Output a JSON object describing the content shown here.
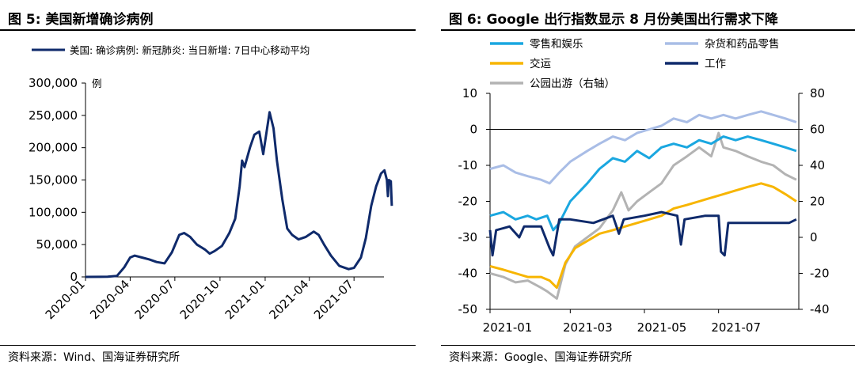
{
  "left": {
    "title": "图 5:  美国新增确诊病例",
    "source": "资料来源：Wind、国海证券研究所"
  },
  "right": {
    "title": "图 6:  Google 出行指数显示 8 月份美国出行需求下降",
    "source": "资料来源：Google、国海证券研究所"
  },
  "colors": {
    "navy": "#0f2a6b",
    "cyan": "#1aa7e0",
    "lightblue": "#a9bde6",
    "yellow": "#f7b500",
    "gray": "#b3b3b3"
  },
  "chart_data": [
    {
      "type": "line",
      "ylabel": "例",
      "ylim": [
        0,
        300000
      ],
      "y_ticks": [
        0,
        50000,
        100000,
        150000,
        200000,
        250000,
        300000
      ],
      "y_tick_labels": [
        "0",
        "50,000",
        "100,000",
        "150,000",
        "200,000",
        "250,000",
        "300,000"
      ],
      "xlim": [
        "2020-01-01",
        "2021-08-31"
      ],
      "x_tick_labels": [
        "2020-01",
        "2020-04",
        "2020-07",
        "2020-10",
        "2021-01",
        "2021-04",
        "2021-07"
      ],
      "x_tick_dates": [
        "2020-01-01",
        "2020-04-01",
        "2020-07-01",
        "2020-10-01",
        "2021-01-01",
        "2021-04-01",
        "2021-07-01"
      ],
      "legend_position": "top-left",
      "series": [
        {
          "name": "美国: 确诊病例: 新冠肺炎: 当日新增: 7日中心移动平均",
          "color": "#0f2a6b",
          "points": [
            [
              "2020-01-01",
              0
            ],
            [
              "2020-02-15",
              200
            ],
            [
              "2020-03-05",
              1500
            ],
            [
              "2020-03-20",
              15000
            ],
            [
              "2020-04-01",
              30000
            ],
            [
              "2020-04-10",
              33000
            ],
            [
              "2020-04-25",
              30000
            ],
            [
              "2020-05-10",
              27000
            ],
            [
              "2020-05-25",
              23000
            ],
            [
              "2020-06-10",
              21000
            ],
            [
              "2020-06-25",
              38000
            ],
            [
              "2020-07-10",
              65000
            ],
            [
              "2020-07-20",
              68000
            ],
            [
              "2020-08-01",
              62000
            ],
            [
              "2020-08-15",
              50000
            ],
            [
              "2020-09-01",
              42000
            ],
            [
              "2020-09-10",
              36000
            ],
            [
              "2020-09-20",
              40000
            ],
            [
              "2020-10-05",
              48000
            ],
            [
              "2020-10-20",
              68000
            ],
            [
              "2020-11-01",
              90000
            ],
            [
              "2020-11-10",
              140000
            ],
            [
              "2020-11-15",
              180000
            ],
            [
              "2020-11-20",
              170000
            ],
            [
              "2020-12-01",
              200000
            ],
            [
              "2020-12-10",
              220000
            ],
            [
              "2020-12-20",
              225000
            ],
            [
              "2020-12-28",
              190000
            ],
            [
              "2021-01-05",
              230000
            ],
            [
              "2021-01-10",
              255000
            ],
            [
              "2021-01-18",
              230000
            ],
            [
              "2021-01-25",
              180000
            ],
            [
              "2021-02-05",
              120000
            ],
            [
              "2021-02-15",
              75000
            ],
            [
              "2021-02-25",
              65000
            ],
            [
              "2021-03-10",
              58000
            ],
            [
              "2021-03-25",
              62000
            ],
            [
              "2021-04-10",
              70000
            ],
            [
              "2021-04-20",
              65000
            ],
            [
              "2021-05-01",
              50000
            ],
            [
              "2021-05-15",
              33000
            ],
            [
              "2021-06-01",
              17000
            ],
            [
              "2021-06-20",
              12000
            ],
            [
              "2021-07-01",
              14000
            ],
            [
              "2021-07-15",
              30000
            ],
            [
              "2021-07-25",
              60000
            ],
            [
              "2021-08-05",
              110000
            ],
            [
              "2021-08-15",
              140000
            ],
            [
              "2021-08-25",
              160000
            ],
            [
              "2021-09-01",
              165000
            ],
            [
              "2021-09-06",
              150000
            ],
            [
              "2021-09-08",
              125000
            ],
            [
              "2021-09-10",
              150000
            ],
            [
              "2021-09-14",
              148000
            ],
            [
              "2021-09-16",
              110000
            ]
          ]
        }
      ]
    },
    {
      "type": "line",
      "ylim": [
        -50,
        10
      ],
      "y_ticks": [
        -50,
        -40,
        -30,
        -20,
        -10,
        0,
        10
      ],
      "y2lim": [
        -40,
        80
      ],
      "y2_ticks": [
        -40,
        -20,
        0,
        20,
        40,
        60,
        80
      ],
      "xlim": [
        "2020-12-25",
        "2021-09-05"
      ],
      "x_tick_labels": [
        "2021-01",
        "2021-03",
        "2021-05",
        "2021-07"
      ],
      "x_tick_dates": [
        "2020-12-25",
        "2021-03-01",
        "2021-05-01",
        "2021-07-01"
      ],
      "legend_position": "top",
      "series": [
        {
          "name": "零售和娱乐",
          "color": "#1aa7e0",
          "axis": "left",
          "points": [
            [
              "2020-12-25",
              -24
            ],
            [
              "2021-01-05",
              -23
            ],
            [
              "2021-01-15",
              -25
            ],
            [
              "2021-01-25",
              -24
            ],
            [
              "2021-02-01",
              -25
            ],
            [
              "2021-02-10",
              -24
            ],
            [
              "2021-02-15",
              -28
            ],
            [
              "2021-02-20",
              -26
            ],
            [
              "2021-03-01",
              -20
            ],
            [
              "2021-03-15",
              -15
            ],
            [
              "2021-03-25",
              -11
            ],
            [
              "2021-04-05",
              -8
            ],
            [
              "2021-04-15",
              -9
            ],
            [
              "2021-04-25",
              -6
            ],
            [
              "2021-05-05",
              -8
            ],
            [
              "2021-05-15",
              -5
            ],
            [
              "2021-05-25",
              -4
            ],
            [
              "2021-06-05",
              -5
            ],
            [
              "2021-06-15",
              -3
            ],
            [
              "2021-06-25",
              -4
            ],
            [
              "2021-07-05",
              -2
            ],
            [
              "2021-07-15",
              -3
            ],
            [
              "2021-07-25",
              -2
            ],
            [
              "2021-08-05",
              -3
            ],
            [
              "2021-08-15",
              -4
            ],
            [
              "2021-08-25",
              -5
            ],
            [
              "2021-09-03",
              -6
            ]
          ]
        },
        {
          "name": "杂货和药品零售",
          "color": "#a9bde6",
          "axis": "left",
          "points": [
            [
              "2020-12-25",
              -11
            ],
            [
              "2021-01-05",
              -10
            ],
            [
              "2021-01-15",
              -12
            ],
            [
              "2021-01-25",
              -13
            ],
            [
              "2021-02-05",
              -14
            ],
            [
              "2021-02-12",
              -15
            ],
            [
              "2021-02-20",
              -12
            ],
            [
              "2021-03-01",
              -9
            ],
            [
              "2021-03-15",
              -6
            ],
            [
              "2021-03-25",
              -4
            ],
            [
              "2021-04-05",
              -2
            ],
            [
              "2021-04-15",
              -3
            ],
            [
              "2021-04-25",
              -1
            ],
            [
              "2021-05-05",
              0
            ],
            [
              "2021-05-15",
              1
            ],
            [
              "2021-05-25",
              3
            ],
            [
              "2021-06-05",
              2
            ],
            [
              "2021-06-15",
              4
            ],
            [
              "2021-06-25",
              3
            ],
            [
              "2021-07-05",
              4
            ],
            [
              "2021-07-15",
              3
            ],
            [
              "2021-07-25",
              4
            ],
            [
              "2021-08-05",
              5
            ],
            [
              "2021-08-15",
              4
            ],
            [
              "2021-08-25",
              3
            ],
            [
              "2021-09-03",
              2
            ]
          ]
        },
        {
          "name": "交运",
          "color": "#f7b500",
          "axis": "left",
          "points": [
            [
              "2020-12-25",
              -38
            ],
            [
              "2021-01-05",
              -39
            ],
            [
              "2021-01-15",
              -40
            ],
            [
              "2021-01-25",
              -41
            ],
            [
              "2021-02-05",
              -41
            ],
            [
              "2021-02-12",
              -42
            ],
            [
              "2021-02-18",
              -44
            ],
            [
              "2021-02-25",
              -37
            ],
            [
              "2021-03-05",
              -33
            ],
            [
              "2021-03-15",
              -31
            ],
            [
              "2021-03-25",
              -29
            ],
            [
              "2021-04-05",
              -28
            ],
            [
              "2021-04-15",
              -27
            ],
            [
              "2021-04-25",
              -26
            ],
            [
              "2021-05-05",
              -25
            ],
            [
              "2021-05-15",
              -24
            ],
            [
              "2021-05-25",
              -22
            ],
            [
              "2021-06-05",
              -21
            ],
            [
              "2021-06-15",
              -20
            ],
            [
              "2021-06-25",
              -19
            ],
            [
              "2021-07-05",
              -18
            ],
            [
              "2021-07-15",
              -17
            ],
            [
              "2021-07-25",
              -16
            ],
            [
              "2021-08-05",
              -15
            ],
            [
              "2021-08-15",
              -16
            ],
            [
              "2021-08-25",
              -18
            ],
            [
              "2021-09-03",
              -20
            ]
          ]
        },
        {
          "name": "工作",
          "color": "#0f2a6b",
          "axis": "left",
          "points": [
            [
              "2020-12-25",
              -28
            ],
            [
              "2020-12-27",
              -35
            ],
            [
              "2020-12-30",
              -28
            ],
            [
              "2021-01-10",
              -27
            ],
            [
              "2021-01-18",
              -30
            ],
            [
              "2021-01-22",
              -27
            ],
            [
              "2021-02-05",
              -27
            ],
            [
              "2021-02-12",
              -33
            ],
            [
              "2021-02-15",
              -35
            ],
            [
              "2021-02-20",
              -25
            ],
            [
              "2021-03-01",
              -25
            ],
            [
              "2021-03-20",
              -26
            ],
            [
              "2021-03-28",
              -25
            ],
            [
              "2021-04-05",
              -24
            ],
            [
              "2021-04-10",
              -29
            ],
            [
              "2021-04-14",
              -25
            ],
            [
              "2021-05-01",
              -24
            ],
            [
              "2021-05-15",
              -23
            ],
            [
              "2021-05-28",
              -24
            ],
            [
              "2021-05-31",
              -32
            ],
            [
              "2021-06-03",
              -25
            ],
            [
              "2021-06-20",
              -24
            ],
            [
              "2021-07-01",
              -24
            ],
            [
              "2021-07-03",
              -34
            ],
            [
              "2021-07-06",
              -35
            ],
            [
              "2021-07-09",
              -26
            ],
            [
              "2021-07-20",
              -26
            ],
            [
              "2021-08-05",
              -26
            ],
            [
              "2021-08-20",
              -26
            ],
            [
              "2021-08-28",
              -26
            ],
            [
              "2021-09-03",
              -25
            ]
          ]
        },
        {
          "name": "公园出游（右轴）",
          "color": "#b3b3b3",
          "axis": "right",
          "points": [
            [
              "2020-12-25",
              -20
            ],
            [
              "2021-01-05",
              -22
            ],
            [
              "2021-01-15",
              -25
            ],
            [
              "2021-01-25",
              -24
            ],
            [
              "2021-02-05",
              -28
            ],
            [
              "2021-02-10",
              -30
            ],
            [
              "2021-02-18",
              -34
            ],
            [
              "2021-02-25",
              -15
            ],
            [
              "2021-03-05",
              -5
            ],
            [
              "2021-03-15",
              0
            ],
            [
              "2021-03-25",
              5
            ],
            [
              "2021-04-05",
              15
            ],
            [
              "2021-04-12",
              25
            ],
            [
              "2021-04-18",
              15
            ],
            [
              "2021-04-25",
              20
            ],
            [
              "2021-05-05",
              25
            ],
            [
              "2021-05-15",
              30
            ],
            [
              "2021-05-25",
              40
            ],
            [
              "2021-06-05",
              45
            ],
            [
              "2021-06-15",
              50
            ],
            [
              "2021-06-25",
              45
            ],
            [
              "2021-07-01",
              58
            ],
            [
              "2021-07-05",
              50
            ],
            [
              "2021-07-15",
              48
            ],
            [
              "2021-07-25",
              45
            ],
            [
              "2021-08-05",
              42
            ],
            [
              "2021-08-15",
              40
            ],
            [
              "2021-08-25",
              35
            ],
            [
              "2021-09-03",
              32
            ]
          ]
        }
      ]
    }
  ]
}
